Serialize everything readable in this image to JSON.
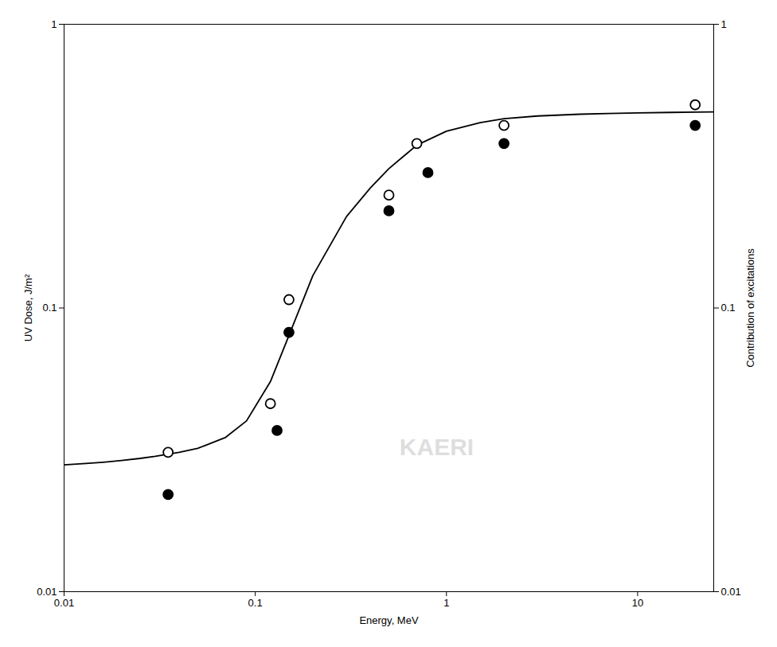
{
  "chart_data": {
    "type": "scatter",
    "xlabel": "Energy, MeV",
    "ylabel": "UV Dose, J/m²",
    "y2label": "Contribution of excitations",
    "log": true,
    "grid": false,
    "xlim": [
      0.01,
      25
    ],
    "ylim": [
      0.01,
      1.0
    ],
    "y2lim": [
      0.01,
      1.0
    ],
    "xticks": [
      0.01,
      0.1,
      1,
      10
    ],
    "yticks": [
      0.01,
      0.1,
      1
    ],
    "y2ticks": [
      0.01,
      0.1,
      1
    ],
    "series": [
      {
        "type": "line",
        "color": "#000000",
        "line_style": "solid",
        "x": [
          0.01,
          0.013,
          0.016,
          0.02,
          0.025,
          0.03,
          0.04,
          0.05,
          0.07,
          0.09,
          0.12,
          0.15,
          0.2,
          0.3,
          0.4,
          0.5,
          0.7,
          1.0,
          1.5,
          2.0,
          3.0,
          5.0,
          7.0,
          10.0,
          15.0,
          20.0,
          25.0
        ],
        "values": [
          0.028,
          0.0283,
          0.0286,
          0.029,
          0.0295,
          0.03,
          0.031,
          0.032,
          0.035,
          0.04,
          0.055,
          0.08,
          0.13,
          0.21,
          0.265,
          0.31,
          0.375,
          0.42,
          0.45,
          0.465,
          0.475,
          0.482,
          0.485,
          0.487,
          0.489,
          0.49,
          0.491
        ]
      },
      {
        "type": "scatter",
        "marker": "open_circle",
        "color": "#000000",
        "x": [
          0.035,
          0.12,
          0.15,
          0.5,
          0.7,
          2.0,
          20.0
        ],
        "values": [
          0.031,
          0.046,
          0.107,
          0.25,
          0.38,
          0.44,
          0.52
        ]
      },
      {
        "type": "scatter",
        "marker": "filled_circle",
        "color": "#000000",
        "x": [
          0.035,
          0.13,
          0.15,
          0.5,
          0.8,
          2.0,
          20.0
        ],
        "values": [
          0.022,
          0.037,
          0.082,
          0.22,
          0.3,
          0.38,
          0.44
        ]
      }
    ],
    "annotations": [
      {
        "text": "KAERI",
        "color": "#d0d0d0"
      }
    ]
  }
}
